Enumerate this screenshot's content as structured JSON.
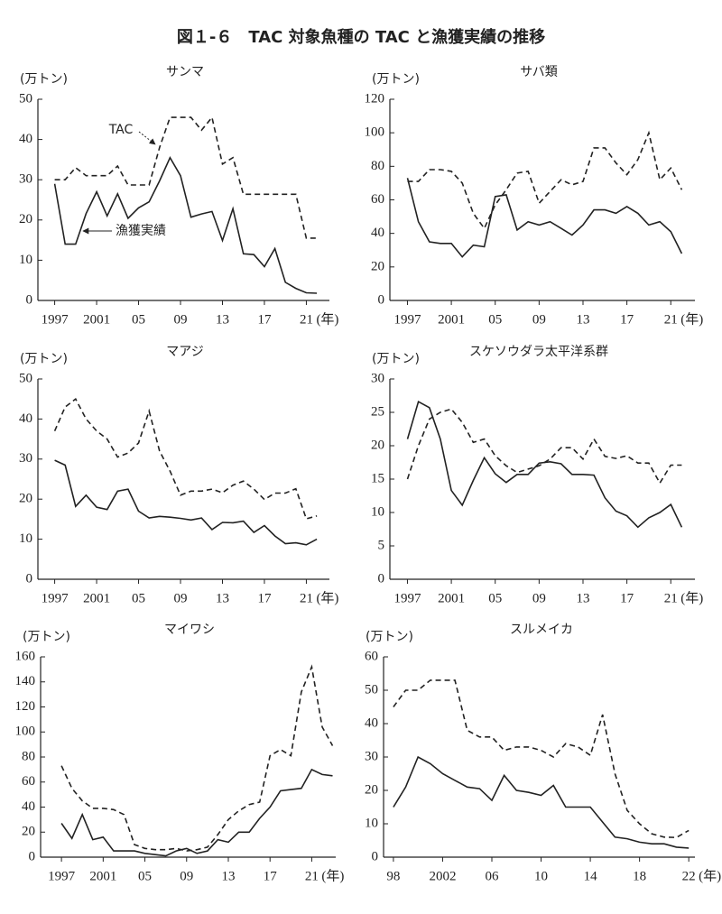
{
  "title": "図１-６　TAC 対象魚種の TAC と漁獲実績の推移",
  "chart_data": [
    {
      "type": "line",
      "title": "サンマ",
      "ylabel": "(万トン)",
      "xlabel": "(年)",
      "x": [
        1997,
        1998,
        1999,
        2000,
        2001,
        2002,
        2003,
        2004,
        2005,
        2006,
        2007,
        2008,
        2009,
        2010,
        2011,
        2012,
        2013,
        2014,
        2015,
        2016,
        2017,
        2018,
        2019,
        2020,
        2021,
        2022
      ],
      "xlim": [
        1995.4,
        2023.2
      ],
      "xticks": [
        1997,
        2001,
        {
          "value": 2005,
          "label": "05"
        },
        {
          "value": 2009,
          "label": "09"
        },
        {
          "value": 2013,
          "label": "13"
        },
        {
          "value": 2017,
          "label": "17"
        },
        {
          "value": 2021,
          "label": "21"
        }
      ],
      "ylim": [
        0,
        50
      ],
      "yticks": [
        0,
        10,
        20,
        30,
        40,
        50
      ],
      "series": [
        {
          "name": "TAC",
          "color": "#222",
          "linestyle": "dashed",
          "values": [
            30,
            30,
            33,
            31,
            31,
            31,
            33.4,
            28.7,
            28.7,
            28.7,
            38,
            45.5,
            45.5,
            45.5,
            42.3,
            45.5,
            33.9,
            35.5,
            26.4,
            26.4,
            26.4,
            26.4,
            26.4,
            26.4,
            15.5,
            15.5
          ]
        },
        {
          "name": "漁獲実績",
          "color": "#222",
          "linestyle": "solid",
          "values": [
            29,
            14,
            14,
            21.6,
            27,
            21,
            26.5,
            20.4,
            23,
            24.5,
            29.7,
            35.5,
            31,
            20.7,
            21.5,
            22.1,
            14.9,
            22.8,
            11.6,
            11.4,
            8.4,
            12.9,
            4.5,
            3,
            1.9,
            1.8
          ]
        }
      ]
    },
    {
      "type": "line",
      "title": "サバ類",
      "ylabel": "(万トン)",
      "xlabel": "(年)",
      "x": [
        1997,
        1998,
        1999,
        2000,
        2001,
        2002,
        2003,
        2004,
        2005,
        2006,
        2007,
        2008,
        2009,
        2010,
        2011,
        2012,
        2013,
        2014,
        2015,
        2016,
        2017,
        2018,
        2019,
        2020,
        2021,
        2022
      ],
      "xlim": [
        1995.4,
        2023.2
      ],
      "xticks": [
        1997,
        2001,
        {
          "value": 2005,
          "label": "05"
        },
        {
          "value": 2009,
          "label": "09"
        },
        {
          "value": 2013,
          "label": "13"
        },
        {
          "value": 2017,
          "label": "17"
        },
        {
          "value": 2021,
          "label": "21"
        }
      ],
      "ylim": [
        0,
        120
      ],
      "yticks": [
        0,
        20,
        40,
        60,
        80,
        100,
        120
      ],
      "series": [
        {
          "color": "#222",
          "linestyle": "dashed",
          "values": [
            71,
            71,
            78,
            78,
            77,
            70,
            52,
            43,
            57,
            66,
            76,
            77,
            58,
            65,
            72,
            69,
            71,
            91,
            91,
            82,
            75,
            84,
            100,
            72,
            79,
            66
          ]
        },
        {
          "color": "#222",
          "linestyle": "solid",
          "values": [
            73,
            47,
            35,
            34,
            34,
            26,
            33,
            32,
            62,
            63,
            42,
            47,
            45,
            47,
            43,
            39,
            45,
            54,
            54,
            52,
            56,
            52,
            45,
            47,
            41,
            28
          ]
        }
      ]
    },
    {
      "type": "line",
      "title": "マアジ",
      "ylabel": "(万トン)",
      "xlabel": "(年)",
      "x": [
        1997,
        1998,
        1999,
        2000,
        2001,
        2002,
        2003,
        2004,
        2005,
        2006,
        2007,
        2008,
        2009,
        2010,
        2011,
        2012,
        2013,
        2014,
        2015,
        2016,
        2017,
        2018,
        2019,
        2020,
        2021,
        2022
      ],
      "xlim": [
        1995.4,
        2023.2
      ],
      "xticks": [
        1997,
        2001,
        {
          "value": 2005,
          "label": "05"
        },
        {
          "value": 2009,
          "label": "09"
        },
        {
          "value": 2013,
          "label": "13"
        },
        {
          "value": 2017,
          "label": "17"
        },
        {
          "value": 2021,
          "label": "21"
        }
      ],
      "ylim": [
        0,
        50
      ],
      "yticks": [
        0,
        10,
        20,
        30,
        40,
        50
      ],
      "series": [
        {
          "color": "#222",
          "linestyle": "dashed",
          "values": [
            37,
            43,
            45,
            40,
            37,
            35,
            30.5,
            31.5,
            34,
            42,
            32,
            27,
            21,
            22,
            22,
            22.5,
            21.6,
            23.5,
            24.5,
            22.5,
            19.9,
            21.5,
            21.5,
            22.6,
            15.1,
            15.8
          ]
        },
        {
          "color": "#222",
          "linestyle": "solid",
          "values": [
            29.7,
            28.5,
            18.2,
            21,
            18,
            17.4,
            22,
            22.5,
            17,
            15.3,
            15.7,
            15.5,
            15.2,
            14.8,
            15.3,
            12.4,
            14.2,
            14.1,
            14.5,
            11.7,
            13.4,
            10.8,
            8.9,
            9.1,
            8.6,
            10
          ]
        }
      ]
    },
    {
      "type": "line",
      "title": "スケソウダラ太平洋系群",
      "ylabel": "(万トン)",
      "xlabel": "(年)",
      "x": [
        1997,
        1998,
        1999,
        2000,
        2001,
        2002,
        2003,
        2004,
        2005,
        2006,
        2007,
        2008,
        2009,
        2010,
        2011,
        2012,
        2013,
        2014,
        2015,
        2016,
        2017,
        2018,
        2019,
        2020,
        2021,
        2022
      ],
      "xlim": [
        1995.4,
        2023.2
      ],
      "xticks": [
        1997,
        2001,
        {
          "value": 2005,
          "label": "05"
        },
        {
          "value": 2009,
          "label": "09"
        },
        {
          "value": 2013,
          "label": "13"
        },
        {
          "value": 2017,
          "label": "17"
        },
        {
          "value": 2021,
          "label": "21"
        }
      ],
      "ylim": [
        0,
        30
      ],
      "yticks": [
        0,
        5,
        10,
        15,
        20,
        25,
        30
      ],
      "series": [
        {
          "color": "#222",
          "linestyle": "dashed",
          "values": [
            15,
            20,
            24,
            25,
            25.5,
            23.5,
            20.5,
            21,
            18.5,
            17,
            16,
            16.5,
            17,
            18,
            19.7,
            19.7,
            18,
            21,
            18.4,
            18.1,
            18.5,
            17.4,
            17.4,
            14.4,
            17.1,
            17.1
          ]
        },
        {
          "color": "#222",
          "linestyle": "solid",
          "values": [
            21,
            26.6,
            25.7,
            21,
            13.3,
            11.1,
            14.8,
            18.2,
            15.8,
            14.5,
            15.7,
            15.7,
            17.4,
            17.6,
            17.3,
            15.7,
            15.7,
            15.6,
            12.2,
            10.2,
            9.5,
            7.8,
            9.2,
            10,
            11.2,
            7.8
          ]
        }
      ]
    },
    {
      "type": "line",
      "title": "マイワシ",
      "ylabel": "(万トン)",
      "xlabel": "(年)",
      "x": [
        1997,
        1998,
        1999,
        2000,
        2001,
        2002,
        2003,
        2004,
        2005,
        2006,
        2007,
        2008,
        2009,
        2010,
        2011,
        2012,
        2013,
        2014,
        2015,
        2016,
        2017,
        2018,
        2019,
        2020,
        2021,
        2022,
        2023
      ],
      "xlim": [
        1995,
        2023.3
      ],
      "xticks": [
        1997,
        2001,
        {
          "value": 2005,
          "label": "05"
        },
        {
          "value": 2009,
          "label": "09"
        },
        {
          "value": 2013,
          "label": "13"
        },
        {
          "value": 2017,
          "label": "17"
        },
        {
          "value": 2021,
          "label": "21"
        }
      ],
      "ylim": [
        0,
        160
      ],
      "yticks": [
        0,
        20,
        40,
        60,
        80,
        100,
        120,
        140,
        160
      ],
      "series": [
        {
          "color": "#222",
          "linestyle": "dashed",
          "values": [
            73,
            55,
            45,
            39,
            39,
            38,
            34,
            10,
            7,
            6,
            6,
            7,
            5,
            6,
            8,
            18,
            30,
            37,
            42,
            44,
            81,
            86,
            81,
            132,
            152,
            104,
            89
          ]
        },
        {
          "color": "#222",
          "linestyle": "solid",
          "values": [
            27,
            15,
            34,
            14,
            16,
            5,
            5,
            5,
            3,
            2,
            1,
            5,
            7,
            3,
            5,
            14,
            12,
            20,
            20,
            31,
            40,
            53,
            54,
            55,
            70,
            66,
            65
          ]
        }
      ]
    },
    {
      "type": "line",
      "title": "スルメイカ",
      "ylabel": "(万トン)",
      "xlabel": "(年)",
      "x": [
        1998,
        1999,
        2000,
        2001,
        2002,
        2003,
        2004,
        2005,
        2006,
        2007,
        2008,
        2009,
        2010,
        2011,
        2012,
        2013,
        2014,
        2015,
        2016,
        2017,
        2018,
        2019,
        2020,
        2021,
        2022
      ],
      "xlim": [
        1997.2,
        2022.5
      ],
      "xticks": [
        {
          "value": 1998,
          "label": "98"
        },
        2002,
        {
          "value": 2006,
          "label": "06"
        },
        {
          "value": 2010,
          "label": "10"
        },
        {
          "value": 2014,
          "label": "14"
        },
        {
          "value": 2018,
          "label": "18"
        },
        {
          "value": 2022,
          "label": "22"
        }
      ],
      "ylim": [
        0,
        60
      ],
      "yticks": [
        0,
        10,
        20,
        30,
        40,
        50,
        60
      ],
      "series": [
        {
          "color": "#222",
          "linestyle": "dashed",
          "values": [
            45,
            50,
            50,
            53,
            53,
            53,
            38,
            36,
            36,
            32,
            33,
            33,
            32,
            30,
            34,
            33,
            30.5,
            42.7,
            25,
            14,
            10,
            7,
            6,
            5.9,
            8
          ]
        },
        {
          "color": "#222",
          "linestyle": "solid",
          "values": [
            15,
            21,
            30,
            28,
            25,
            23,
            21,
            20.5,
            17,
            24.5,
            20,
            19.4,
            18.5,
            21.5,
            15,
            15,
            15,
            10.5,
            6,
            5.5,
            4.5,
            4,
            4,
            3,
            2.7
          ]
        }
      ]
    }
  ]
}
